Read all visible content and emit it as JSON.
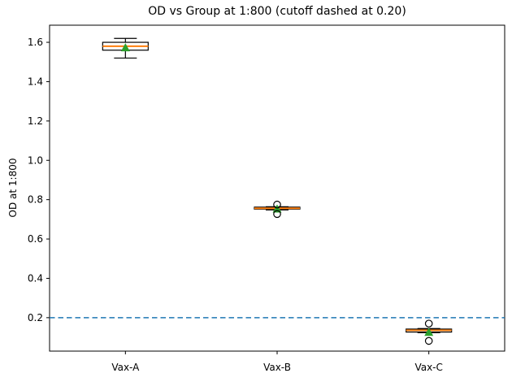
{
  "chart_data": {
    "type": "boxplot",
    "title": "OD vs Group at 1:800 (cutoff dashed at 0.20)",
    "ylabel": "OD at 1:800",
    "xlabel": "",
    "categories": [
      "Vax-A",
      "Vax-B",
      "Vax-C"
    ],
    "groups": [
      {
        "label": "Vax-A",
        "whisker_low": 1.52,
        "q1": 1.56,
        "median": 1.58,
        "q3": 1.6,
        "whisker_high": 1.62,
        "mean": 1.575,
        "outliers": []
      },
      {
        "label": "Vax-B",
        "whisker_low": 0.748,
        "q1": 0.752,
        "median": 0.756,
        "q3": 0.762,
        "whisker_high": 0.764,
        "mean": 0.755,
        "outliers": [
          0.775,
          0.727
        ]
      },
      {
        "label": "Vax-C",
        "whisker_low": 0.124,
        "q1": 0.127,
        "median": 0.136,
        "q3": 0.142,
        "whisker_high": 0.145,
        "mean": 0.128,
        "outliers": [
          0.17,
          0.082
        ]
      }
    ],
    "cutoff": {
      "value": 0.2,
      "style": "dashed"
    },
    "xlim": [
      0.5,
      3.5
    ],
    "ylim": [
      0.03,
      1.687
    ],
    "yticks": [
      0.2,
      0.4,
      0.6,
      0.8,
      1.0,
      1.2,
      1.4,
      1.6
    ],
    "box_width": 0.3,
    "cap_width": 0.15,
    "grid": false,
    "legend": "none",
    "colors": {
      "box": "#000000",
      "median": "#ff7f0e",
      "mean_marker": "#2ca02c",
      "outlier_edge": "#000000",
      "cutoff_line": "#1f77b4",
      "text": "#000000",
      "background": "#ffffff"
    }
  }
}
